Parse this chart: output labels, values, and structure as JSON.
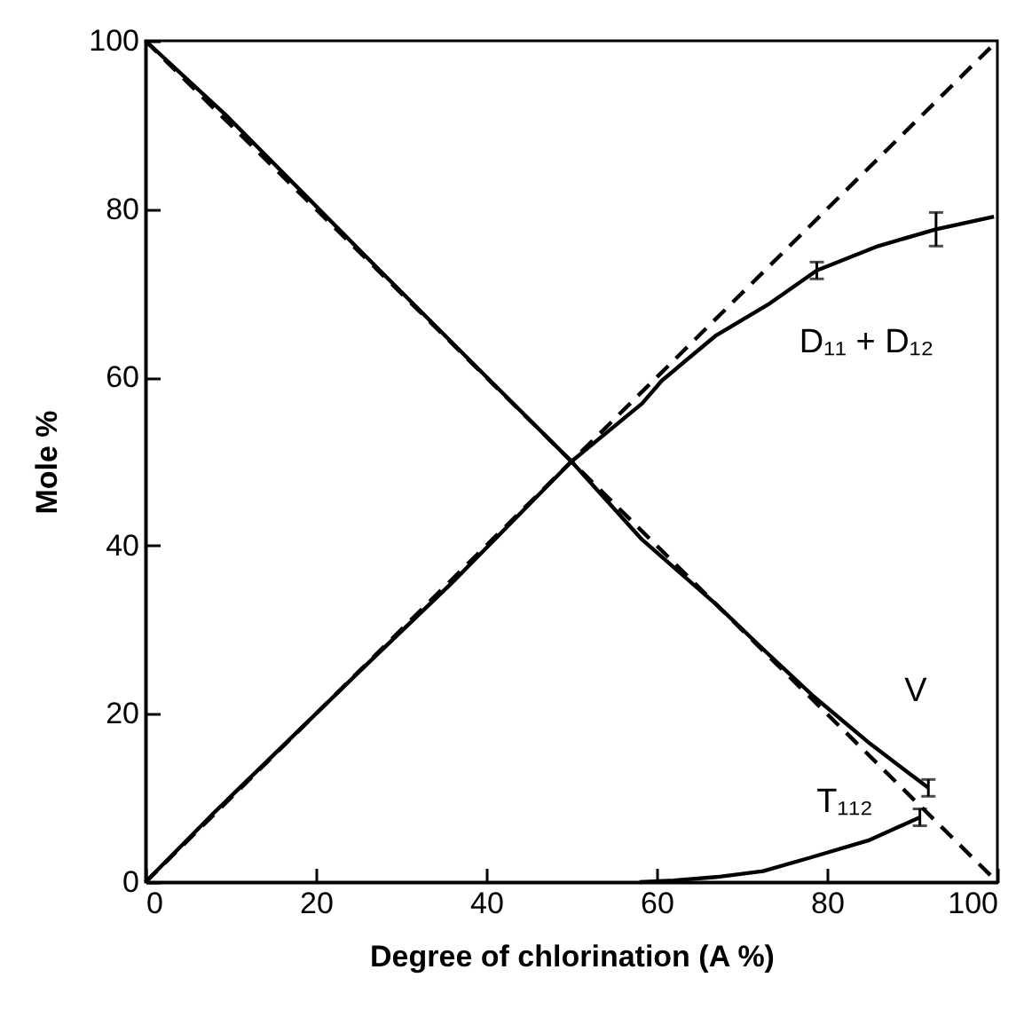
{
  "chart_data": {
    "type": "line",
    "xlabel": "Degree of  chlorination  (A %)",
    "ylabel": "Mole  %",
    "xlim": [
      0,
      100
    ],
    "ylim": [
      0,
      100
    ],
    "xticks": [
      0,
      20,
      40,
      60,
      80,
      100
    ],
    "yticks": [
      0,
      20,
      40,
      60,
      80,
      100
    ],
    "grid": false,
    "marker": "none",
    "series": [
      {
        "name": "D₁₁ + D₁₂",
        "color": "#000000",
        "line_style": "solid",
        "x": [
          0,
          8.1,
          26.2,
          35.9,
          50,
          58.3,
          60.6,
          67,
          73.3,
          78.8,
          86,
          92.8,
          99.6
        ],
        "values": [
          0,
          8.3,
          26.1,
          35.5,
          50,
          56.9,
          59.6,
          65,
          68.8,
          72.7,
          75.6,
          77.6,
          79.1
        ],
        "errors": [
          null,
          null,
          null,
          null,
          null,
          null,
          null,
          null,
          null,
          1,
          null,
          2,
          null
        ]
      },
      {
        "name": "V",
        "color": "#000000",
        "line_style": "solid",
        "x": [
          0,
          9.2,
          27.5,
          36.1,
          50,
          58.3,
          67,
          72.8,
          78.4,
          85,
          91.9
        ],
        "values": [
          100,
          91.4,
          72.7,
          64,
          50,
          40.7,
          33,
          27.4,
          22.1,
          16.5,
          11.2
        ],
        "errors": [
          null,
          null,
          null,
          null,
          null,
          null,
          null,
          null,
          null,
          null,
          1
        ]
      },
      {
        "name": "T₁₁₂",
        "color": "#000000",
        "line_style": "solid",
        "x": [
          58,
          62,
          67,
          72.5,
          78,
          85,
          90.9
        ],
        "values": [
          0,
          0.2,
          0.6,
          1.3,
          2.9,
          5,
          7.7
        ],
        "errors": [
          null,
          null,
          null,
          null,
          null,
          null,
          1
        ]
      },
      {
        "color": "#000000",
        "line_style": "dashed",
        "x": [
          0,
          100
        ],
        "values": [
          0,
          100
        ]
      },
      {
        "color": "#000000",
        "line_style": "dashed",
        "x": [
          0,
          100
        ],
        "values": [
          100,
          0
        ]
      }
    ]
  }
}
